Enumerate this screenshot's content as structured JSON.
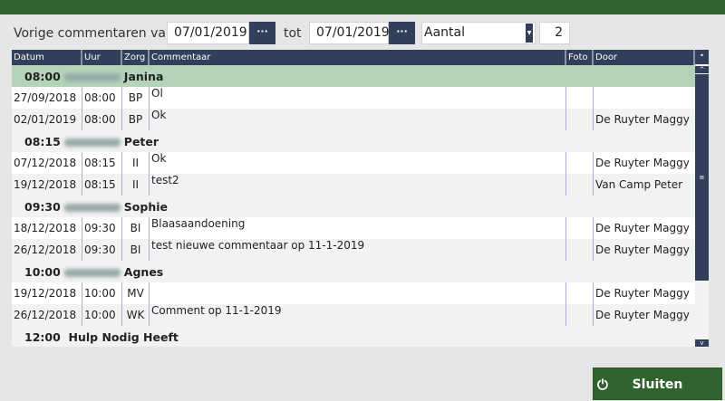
{
  "filter": {
    "label_from": "Vorige commentaren van",
    "date_from": "07/01/2019",
    "label_to": "tot",
    "date_to": "07/01/2019",
    "picker_label": "···",
    "mode": "Aantal",
    "count": "2"
  },
  "columns": [
    "Datum",
    "Uur",
    "Zorg",
    "Commentaar",
    "Foto",
    "Door"
  ],
  "groups": [
    {
      "time": "08:00",
      "name": "Janina",
      "rows": [
        {
          "datum": "27/09/2018",
          "uur": "08:00",
          "zorg": "BP",
          "commentaar": "Ol",
          "foto": "",
          "door": ""
        },
        {
          "datum": "02/01/2019",
          "uur": "08:00",
          "zorg": "BP",
          "commentaar": "Ok",
          "foto": "",
          "door": "De Ruyter Maggy"
        }
      ]
    },
    {
      "time": "08:15",
      "name": "Peter",
      "rows": [
        {
          "datum": "07/12/2018",
          "uur": "08:15",
          "zorg": "II",
          "commentaar": "Ok",
          "foto": "",
          "door": "De Ruyter Maggy"
        },
        {
          "datum": "19/12/2018",
          "uur": "08:15",
          "zorg": "II",
          "commentaar": "test2",
          "foto": "",
          "door": "Van Camp Peter"
        }
      ]
    },
    {
      "time": "09:30",
      "name": "Sophie",
      "rows": [
        {
          "datum": "18/12/2018",
          "uur": "09:30",
          "zorg": "BI",
          "commentaar": "Blaasaandoening",
          "foto": "",
          "door": "De Ruyter Maggy"
        },
        {
          "datum": "26/12/2018",
          "uur": "09:30",
          "zorg": "BI",
          "commentaar": "test nieuwe commentaar op 11-1-2019",
          "foto": "",
          "door": "De Ruyter Maggy"
        }
      ]
    },
    {
      "time": "10:00",
      "name": "Agnes",
      "rows": [
        {
          "datum": "19/12/2018",
          "uur": "10:00",
          "zorg": "MV",
          "commentaar": "",
          "foto": "",
          "door": "De Ruyter Maggy"
        },
        {
          "datum": "26/12/2018",
          "uur": "10:00",
          "zorg": "WK",
          "commentaar": "Comment op 11-1-2019",
          "foto": "",
          "door": "De Ruyter Maggy"
        }
      ]
    },
    {
      "time": "12:00",
      "name": "Hulp Nodig Heeft",
      "rows": []
    }
  ],
  "close_label": "Sluiten",
  "colors": {
    "header": "#323f5b",
    "accent_green": "#31632f",
    "group_highlight": "#b5d3b9"
  }
}
